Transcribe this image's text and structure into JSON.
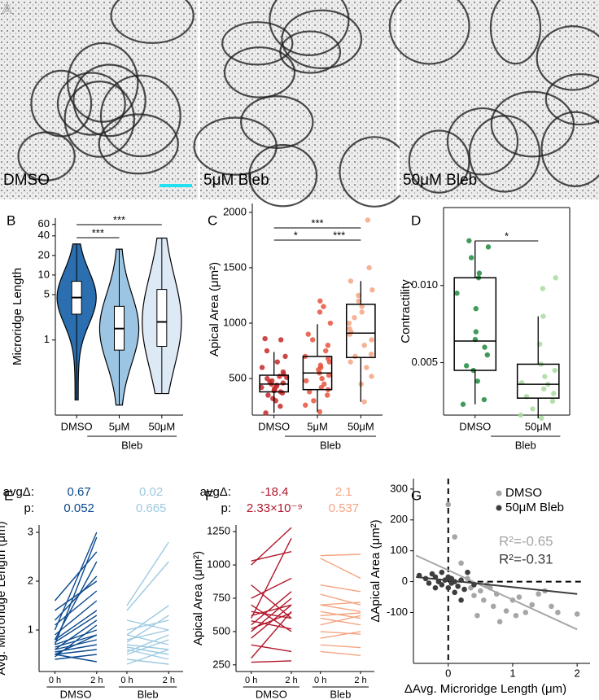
{
  "panel_labels": [
    "A",
    "B",
    "C",
    "D",
    "E",
    "F",
    "G"
  ],
  "images": [
    {
      "label": "DMSO"
    },
    {
      "label": "5μM Bleb"
    },
    {
      "label": "50μM Bleb"
    }
  ],
  "chart_data": [
    {
      "type": "violin",
      "ylabel": "Microridge Length",
      "ylog": true,
      "ylim": [
        0.07,
        75
      ],
      "yticks": [
        1,
        5,
        10,
        20,
        40,
        60
      ],
      "categories": [
        "DMSO",
        "5μM",
        "50μM"
      ],
      "group_label": "Bleb",
      "colors": [
        "#2b6fb0",
        "#9cc5e4",
        "#dde9f5"
      ],
      "stats": [
        {
          "min": 0.12,
          "q1": 2.5,
          "median": 4.5,
          "q3": 8,
          "max": 30
        },
        {
          "min": 0.1,
          "q1": 0.7,
          "median": 1.5,
          "q3": 3.3,
          "max": 25
        },
        {
          "min": 0.15,
          "q1": 0.8,
          "median": 1.9,
          "q3": 6,
          "max": 37
        }
      ],
      "significance": [
        "***",
        "***"
      ]
    },
    {
      "type": "box",
      "ylabel": "Apical Area (μm²)",
      "ylim": [
        170,
        2080
      ],
      "yticks": [
        500,
        1000,
        1500,
        2000
      ],
      "categories": [
        "DMSO",
        "5μM",
        "50μM"
      ],
      "group_label": "Bleb",
      "colors": [
        "#c62828",
        "#e5533d",
        "#f4a582"
      ],
      "boxes": [
        {
          "low": 190,
          "q1": 380,
          "median": 450,
          "q3": 530,
          "high": 740
        },
        {
          "low": 200,
          "q1": 400,
          "median": 550,
          "q3": 700,
          "high": 990
        },
        {
          "low": 290,
          "q1": 690,
          "median": 910,
          "q3": 1170,
          "high": 1380
        }
      ],
      "points": [
        [
          190,
          250,
          300,
          320,
          350,
          370,
          380,
          390,
          400,
          410,
          420,
          430,
          440,
          450,
          460,
          470,
          480,
          500,
          510,
          520,
          540,
          560,
          600,
          650,
          700,
          750,
          850,
          860
        ],
        [
          200,
          260,
          300,
          350,
          380,
          400,
          420,
          450,
          480,
          500,
          530,
          550,
          580,
          600,
          620,
          650,
          680,
          700,
          750,
          800,
          850,
          900,
          1000,
          1100,
          1150,
          1200
        ],
        [
          290,
          450,
          520,
          600,
          650,
          700,
          720,
          800,
          850,
          900,
          920,
          950,
          1000,
          1050,
          1100,
          1150,
          1200,
          1250,
          1300,
          1380,
          1500,
          1930
        ]
      ],
      "significance": [
        "*",
        "***",
        "***"
      ]
    },
    {
      "type": "box",
      "ylabel": "Contractility",
      "frame": true,
      "ylim": [
        0.0016,
        0.01505
      ],
      "yticks": [
        0.005,
        {
          "value": 0.01,
          "label": "0.010"
        }
      ],
      "categories": [
        "DMSO",
        "50μM"
      ],
      "group_label": "Bleb",
      "colors": [
        "#1e8a3e",
        "#a8dba0"
      ],
      "boxes": [
        {
          "low": 0.0023,
          "q1": 0.0045,
          "median": 0.0064,
          "q3": 0.0105,
          "high": 0.0129
        },
        {
          "low": 0.0014,
          "q1": 0.0027,
          "median": 0.0036,
          "q3": 0.0049,
          "high": 0.008
        }
      ],
      "points": [
        [
          0.0023,
          0.0026,
          0.0038,
          0.0045,
          0.0048,
          0.0055,
          0.006,
          0.0065,
          0.007,
          0.0085,
          0.0095,
          0.0105,
          0.0108,
          0.0118,
          0.0125,
          0.0129
        ],
        [
          0.0014,
          0.0016,
          0.002,
          0.0025,
          0.0028,
          0.003,
          0.0033,
          0.0036,
          0.0037,
          0.0041,
          0.0045,
          0.0049,
          0.0062,
          0.008,
          0.0098,
          0.0105
        ]
      ],
      "significance": [
        "*"
      ]
    },
    {
      "type": "paired",
      "ylabel": "Avg. Microridge Length (μm)",
      "ylim": [
        0.15,
        3.15
      ],
      "yticks": [
        1,
        2,
        3
      ],
      "x_labels": [
        "0 h",
        "2 h"
      ],
      "avg_label": "avgΔ:",
      "p_label": "p:",
      "series": [
        {
          "name": "DMSO",
          "color": "#0b4a8f",
          "avg": 0.67,
          "p": 0.052,
          "values": [
            [
              0.5,
              0.9
            ],
            [
              0.6,
              1.2
            ],
            [
              0.7,
              2.9
            ],
            [
              0.8,
              2.4
            ],
            [
              1.0,
              3.0
            ],
            [
              1.2,
              2.1
            ],
            [
              1.6,
              2.6
            ],
            [
              0.5,
              0.6
            ],
            [
              0.6,
              0.8
            ],
            [
              0.7,
              1.0
            ],
            [
              0.9,
              1.6
            ],
            [
              0.4,
              0.5
            ],
            [
              0.55,
              0.7
            ],
            [
              1.1,
              1.8
            ],
            [
              0.8,
              1.4
            ],
            [
              0.45,
              1.1
            ],
            [
              0.65,
              0.9
            ],
            [
              1.4,
              2.0
            ],
            [
              0.75,
              1.3
            ],
            [
              0.5,
              0.35
            ]
          ]
        },
        {
          "name": "Bleb",
          "color": "#9ecae1",
          "avg": 0.02,
          "p": 0.665,
          "values": [
            [
              1.5,
              2.8
            ],
            [
              1.4,
              2.4
            ],
            [
              0.9,
              1.5
            ],
            [
              0.7,
              0.6
            ],
            [
              0.5,
              0.8
            ],
            [
              0.6,
              0.4
            ],
            [
              0.8,
              1.0
            ],
            [
              1.0,
              1.2
            ],
            [
              0.4,
              0.3
            ],
            [
              0.55,
              0.9
            ],
            [
              0.65,
              0.5
            ],
            [
              1.2,
              1.0
            ],
            [
              0.3,
              0.6
            ],
            [
              0.75,
              1.3
            ],
            [
              0.9,
              0.7
            ]
          ]
        }
      ]
    },
    {
      "type": "paired",
      "ylabel": "Apical Area (μm²)",
      "ylim": [
        200,
        1300
      ],
      "yticks": [
        250,
        500,
        750,
        1000,
        1250
      ],
      "x_labels": [
        "0 h",
        "2 h"
      ],
      "avg_label": "avgΔ:",
      "p_label": "p:",
      "series": [
        {
          "name": "DMSO",
          "color": "#b2182b",
          "avg": -18.4,
          "p": {
            "value": 2.33e-09,
            "label": "2.33×10⁻⁹"
          },
          "values": [
            [
              1000,
              1280
            ],
            [
              1030,
              1100
            ],
            [
              850,
              600
            ],
            [
              750,
              900
            ],
            [
              700,
              500
            ],
            [
              600,
              1200
            ],
            [
              550,
              800
            ],
            [
              500,
              750
            ],
            [
              450,
              700
            ],
            [
              400,
              350
            ],
            [
              300,
              650
            ],
            [
              270,
              280
            ],
            [
              650,
              600
            ],
            [
              620,
              700
            ],
            [
              580,
              520
            ],
            [
              520,
              640
            ]
          ]
        },
        {
          "name": "Bleb",
          "color": "#f4a582",
          "avg": 2.1,
          "p": 0.537,
          "values": [
            [
              1070,
              1080
            ],
            [
              1050,
              900
            ],
            [
              850,
              800
            ],
            [
              780,
              700
            ],
            [
              700,
              650
            ],
            [
              650,
              600
            ],
            [
              600,
              550
            ],
            [
              550,
              620
            ],
            [
              500,
              480
            ],
            [
              450,
              500
            ],
            [
              400,
              380
            ],
            [
              350,
              320
            ],
            [
              700,
              720
            ],
            [
              620,
              640
            ]
          ]
        }
      ]
    },
    {
      "type": "scatter",
      "xlabel": "ΔAvg. Microridge Length (μm)",
      "ylabel": "ΔApical Area (μm²)",
      "xlim": [
        -0.54,
        2.2
      ],
      "xticks": [
        0,
        1,
        2
      ],
      "ylim": [
        -265,
        334
      ],
      "yticks": [
        -100,
        0,
        100,
        200,
        300
      ],
      "ref_x": 0,
      "ref_y": 0,
      "series": [
        {
          "name": "DMSO",
          "color": "#a6a6a6",
          "r2_label": "R²=-0.65",
          "x": [
            0.0,
            0.1,
            0.2,
            0.3,
            0.35,
            0.4,
            0.5,
            0.55,
            0.6,
            0.7,
            0.75,
            0.8,
            0.9,
            1.0,
            1.05,
            1.1,
            1.2,
            1.3,
            1.4,
            1.5,
            1.6,
            1.7,
            2.0,
            0.45,
            0.65
          ],
          "y": [
            250,
            145,
            60,
            10,
            -20,
            -45,
            -30,
            -60,
            -10,
            -80,
            -40,
            -130,
            -95,
            -60,
            -110,
            -50,
            -100,
            -75,
            -40,
            -30,
            -80,
            -100,
            -105,
            -110,
            -20
          ],
          "fit": {
            "x": [
              -0.5,
              2
            ],
            "y": [
              85,
              -155
            ]
          }
        },
        {
          "name": "50μM Bleb",
          "color": "#3d3d3d",
          "r2_label": "R²=-0.31",
          "x": [
            -0.45,
            -0.35,
            -0.3,
            -0.25,
            -0.2,
            -0.15,
            -0.1,
            -0.05,
            0.0,
            0.05,
            0.1,
            0.15,
            0.2,
            0.25,
            0.3,
            -0.1,
            0.0,
            0.1,
            0.4,
            0.2,
            -0.2,
            0.05
          ],
          "y": [
            20,
            10,
            -5,
            25,
            15,
            0,
            -10,
            5,
            -20,
            10,
            0,
            -15,
            5,
            -25,
            30,
            30,
            15,
            -35,
            -10,
            -60,
            -20,
            -5
          ],
          "fit": {
            "x": [
              -0.5,
              2
            ],
            "y": [
              15,
              -40
            ]
          }
        }
      ]
    }
  ]
}
